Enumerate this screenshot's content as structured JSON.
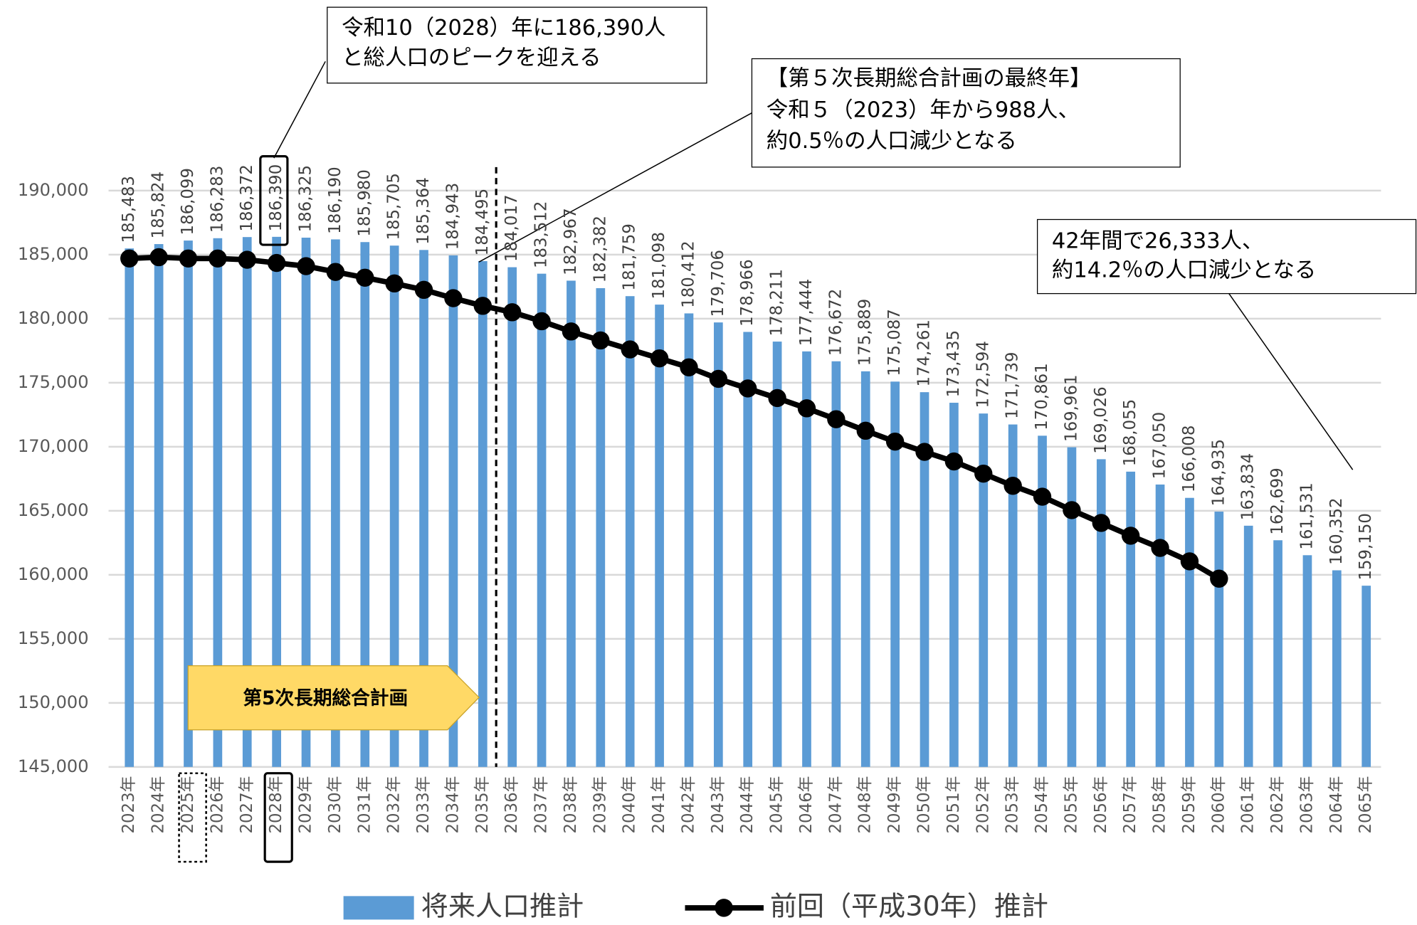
{
  "chart_data": {
    "type": "bar",
    "categories": [
      "2023年",
      "2024年",
      "2025年",
      "2026年",
      "2027年",
      "2028年",
      "2029年",
      "2030年",
      "2031年",
      "2032年",
      "2033年",
      "2034年",
      "2035年",
      "2036年",
      "2037年",
      "2038年",
      "2039年",
      "2040年",
      "2041年",
      "2042年",
      "2043年",
      "2044年",
      "2045年",
      "2046年",
      "2047年",
      "2048年",
      "2049年",
      "2050年",
      "2051年",
      "2052年",
      "2053年",
      "2054年",
      "2055年",
      "2056年",
      "2057年",
      "2058年",
      "2059年",
      "2060年",
      "2061年",
      "2062年",
      "2063年",
      "2064年",
      "2065年"
    ],
    "series": [
      {
        "name": "将来人口推計",
        "type": "bar",
        "color": "#5b9bd5",
        "values": [
          185483,
          185824,
          186099,
          186283,
          186372,
          186390,
          186325,
          186190,
          185980,
          185705,
          185364,
          184943,
          184495,
          184017,
          183512,
          182967,
          182382,
          181759,
          181098,
          180412,
          179706,
          178966,
          178211,
          177444,
          176672,
          175889,
          175087,
          174261,
          173435,
          172594,
          171739,
          170861,
          169961,
          169026,
          168055,
          167050,
          166008,
          164935,
          163834,
          162699,
          161531,
          160352,
          159150
        ],
        "value_labels": [
          "185,483",
          "185,824",
          "186,099",
          "186,283",
          "186,372",
          "186,390",
          "186,325",
          "186,190",
          "185,980",
          "185,705",
          "185,364",
          "184,943",
          "184,495",
          "184,017",
          "183,512",
          "182,967",
          "182,382",
          "181,759",
          "181,098",
          "180,412",
          "179,706",
          "178,966",
          "178,211",
          "177,444",
          "176,672",
          "175,889",
          "175,087",
          "174,261",
          "173,435",
          "172,594",
          "171,739",
          "170,861",
          "169,961",
          "169,026",
          "168,055",
          "167,050",
          "166,008",
          "164,935",
          "163,834",
          "162,699",
          "161,531",
          "160,352",
          "159,150"
        ]
      },
      {
        "name": "前回（平成30年）推計",
        "type": "line",
        "color": "#000000",
        "values": [
          184700,
          184800,
          184700,
          184700,
          184600,
          184350,
          184100,
          183650,
          183200,
          182750,
          182250,
          181600,
          181000,
          180500,
          179800,
          179000,
          178300,
          177600,
          176900,
          176200,
          175300,
          174550,
          173800,
          173000,
          172150,
          171250,
          170400,
          169600,
          168850,
          167900,
          166950,
          166100,
          165050,
          164050,
          163050,
          162100,
          161050,
          159700,
          null,
          null,
          null,
          null,
          null
        ]
      }
    ],
    "ylim": [
      145000,
      190000
    ],
    "yticks": [
      {
        "value": 145000,
        "label": "145,000"
      },
      {
        "value": 150000,
        "label": "150,000"
      },
      {
        "value": 155000,
        "label": "155,000"
      },
      {
        "value": 160000,
        "label": "160,000"
      },
      {
        "value": 165000,
        "label": "165,000"
      },
      {
        "value": 170000,
        "label": "170,000"
      },
      {
        "value": 175000,
        "label": "175,000"
      },
      {
        "value": 180000,
        "label": "180,000"
      },
      {
        "value": 185000,
        "label": "185,000"
      },
      {
        "value": 190000,
        "label": "190,000"
      }
    ],
    "grid": true,
    "legend": "bottom",
    "plan_label": "第5次長期総合計画",
    "annotations": [
      [
        "令和10（2028）年に186,390人",
        "と総人口のピークを迎える"
      ],
      [
        "【第５次長期総合計画の最終年】",
        "令和５（2023）年から988人、",
        "約0.5％の人口減少となる"
      ],
      [
        "42年間で26,333人、",
        "約14.2％の人口減少となる"
      ]
    ]
  }
}
